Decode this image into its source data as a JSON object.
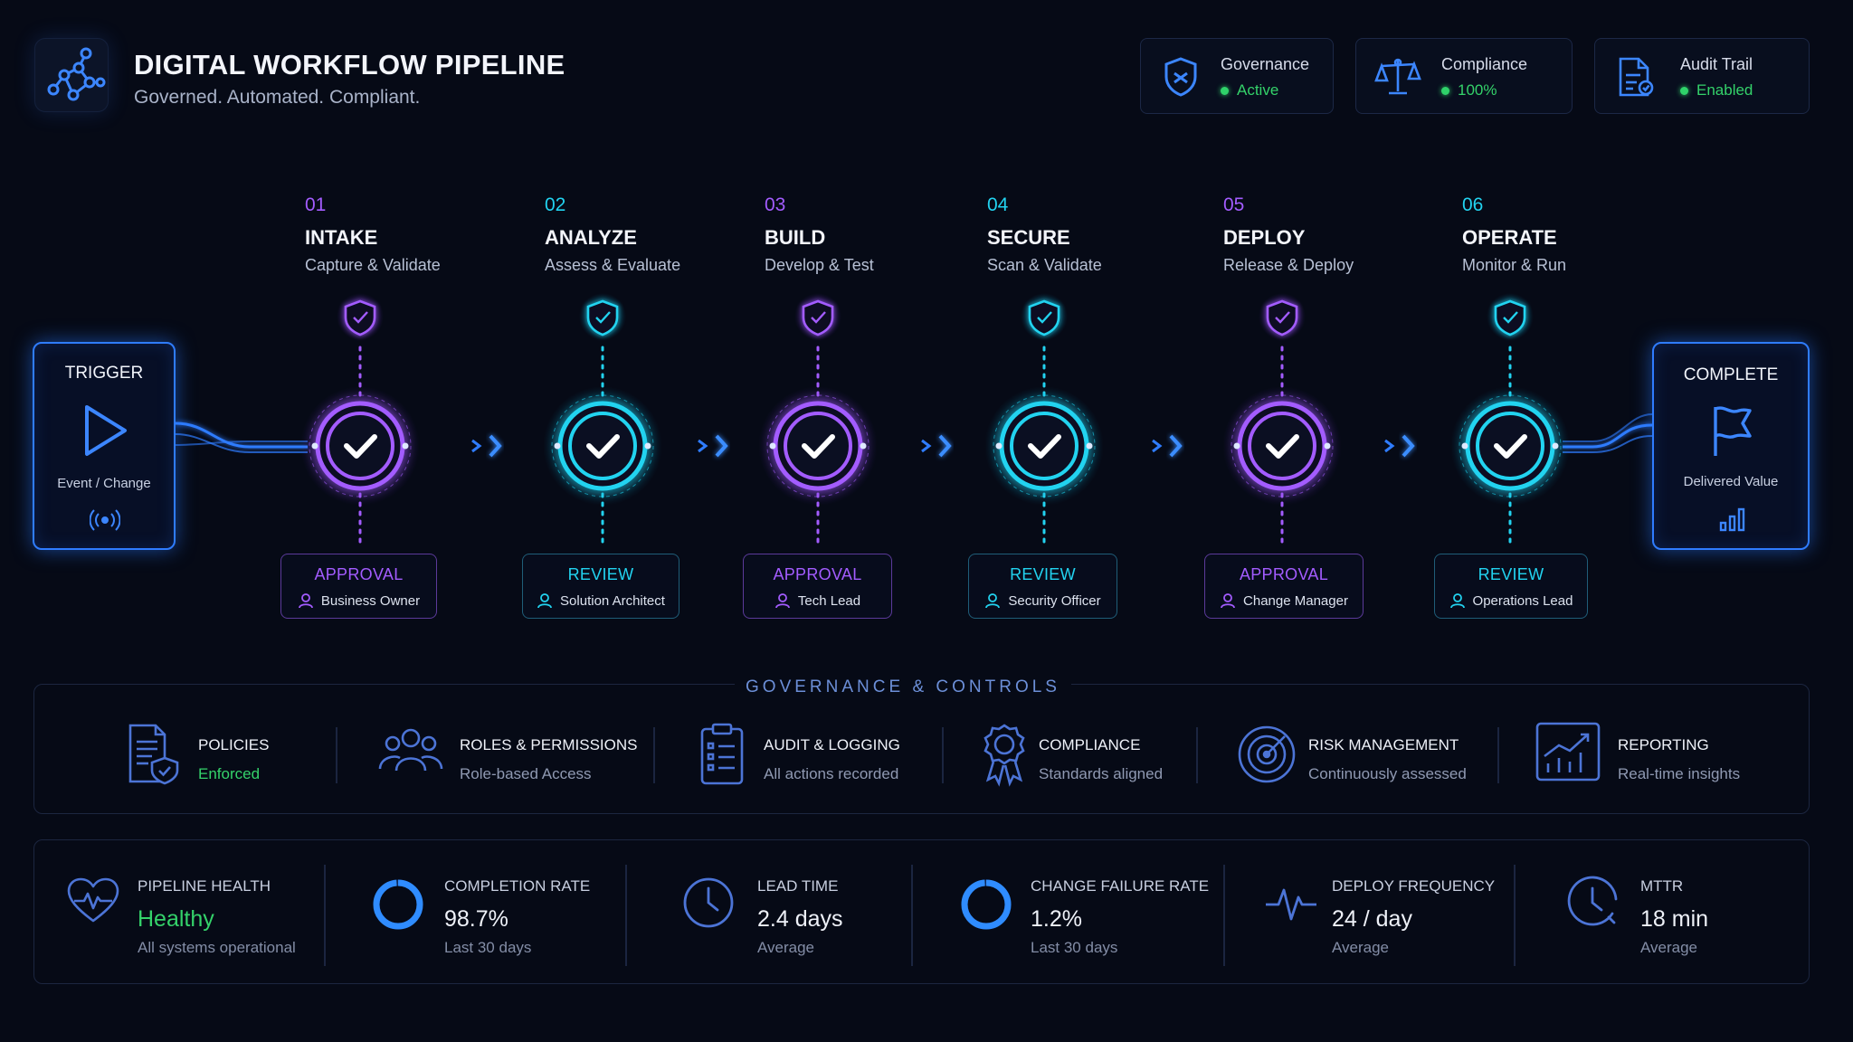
{
  "header": {
    "title": "DIGITAL WORKFLOW PIPELINE",
    "subtitle": "Governed. Automated. Compliant.",
    "logo_icon": "network-nodes-icon"
  },
  "status_cards": [
    {
      "label": "Governance",
      "value": "Active",
      "icon": "shield-icon"
    },
    {
      "label": "Compliance",
      "value": "100%",
      "icon": "scales-icon"
    },
    {
      "label": "Audit Trail",
      "value": "Enabled",
      "icon": "document-check-icon"
    }
  ],
  "trigger": {
    "title": "TRIGGER",
    "subtitle": "Event / Change",
    "icon": "play-icon",
    "signal_icon": "broadcast-icon"
  },
  "complete": {
    "title": "COMPLETE",
    "subtitle": "Delivered Value",
    "icon": "flag-icon",
    "chart_icon": "bar-chart-icon"
  },
  "stages": [
    {
      "num": "01",
      "name": "INTAKE",
      "desc": "Capture & Validate",
      "gate": "APPROVAL",
      "role": "Business Owner"
    },
    {
      "num": "02",
      "name": "ANALYZE",
      "desc": "Assess & Evaluate",
      "gate": "REVIEW",
      "role": "Solution Architect"
    },
    {
      "num": "03",
      "name": "BUILD",
      "desc": "Develop & Test",
      "gate": "APPROVAL",
      "role": "Tech Lead"
    },
    {
      "num": "04",
      "name": "SECURE",
      "desc": "Scan & Validate",
      "gate": "REVIEW",
      "role": "Security Officer"
    },
    {
      "num": "05",
      "name": "DEPLOY",
      "desc": "Release & Deploy",
      "gate": "APPROVAL",
      "role": "Change Manager"
    },
    {
      "num": "06",
      "name": "OPERATE",
      "desc": "Monitor & Run",
      "gate": "REVIEW",
      "role": "Operations Lead"
    }
  ],
  "governance": {
    "title": "GOVERNANCE & CONTROLS",
    "items": [
      {
        "title": "POLICIES",
        "sub": "Enforced",
        "icon": "policy-document-icon"
      },
      {
        "title": "ROLES & PERMISSIONS",
        "sub": "Role-based Access",
        "icon": "users-icon"
      },
      {
        "title": "AUDIT & LOGGING",
        "sub": "All actions recorded",
        "icon": "clipboard-list-icon"
      },
      {
        "title": "COMPLIANCE",
        "sub": "Standards aligned",
        "icon": "badge-icon"
      },
      {
        "title": "RISK MANAGEMENT",
        "sub": "Continuously assessed",
        "icon": "radar-icon"
      },
      {
        "title": "REPORTING",
        "sub": "Real-time insights",
        "icon": "line-chart-icon"
      }
    ]
  },
  "metrics": [
    {
      "label": "PIPELINE HEALTH",
      "value": "Healthy",
      "sub": "All systems operational",
      "icon": "heart-pulse-icon"
    },
    {
      "label": "COMPLETION RATE",
      "value": "98.7%",
      "sub": "Last 30 days",
      "icon": "ring-gauge-icon",
      "ring_fraction": 0.987
    },
    {
      "label": "LEAD TIME",
      "value": "2.4 days",
      "sub": "Average",
      "icon": "clock-icon"
    },
    {
      "label": "CHANGE FAILURE RATE",
      "value": "1.2%",
      "sub": "Last 30 days",
      "icon": "ring-gauge-icon",
      "ring_fraction": 0.988
    },
    {
      "label": "DEPLOY FREQUENCY",
      "value": "24 / day",
      "sub": "Average",
      "icon": "activity-icon"
    },
    {
      "label": "MTTR",
      "value": "18 min",
      "sub": "Average",
      "icon": "clock-refresh-icon"
    }
  ],
  "colors": {
    "background": "#060a16",
    "purple": "#a35cff",
    "cyan": "#22d3f0",
    "blue": "#2f7cff",
    "green": "#2fd36a"
  }
}
